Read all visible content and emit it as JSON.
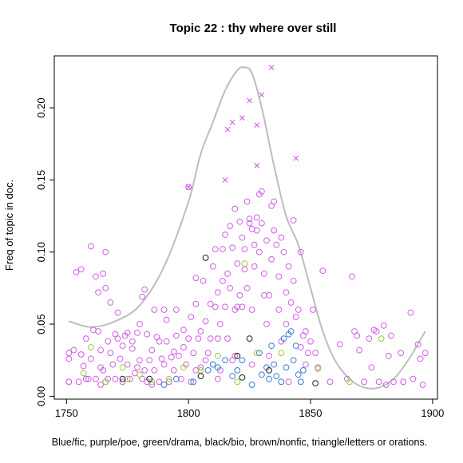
{
  "chart_data": {
    "type": "scatter",
    "title": "Topic 22 : thy where over still",
    "ylabel": "Freq of topic in doc.",
    "caption": "Blue/fic, purple/poe, green/drama, black/bio, brown/nonfic, triangle/letters or orations.",
    "xlim": [
      1745,
      1902
    ],
    "ylim": [
      -0.002,
      0.236
    ],
    "x_ticks": [
      1750,
      1800,
      1850,
      1900
    ],
    "x_tick_labels": [
      "1750",
      "1800",
      "1850",
      "1900"
    ],
    "y_ticks": [
      0.0,
      0.05,
      0.1,
      0.15,
      0.2
    ],
    "y_tick_labels": [
      "0.00",
      "0.05",
      "0.10",
      "0.15",
      "0.20"
    ],
    "grid": false,
    "colors": {
      "fic": "#3a7fd0",
      "poe": "#d15ee6",
      "drama": "#9acd32",
      "bio": "#222222",
      "trend": "#bdbdbd"
    },
    "trend": {
      "x": [
        1751,
        1760,
        1770,
        1780,
        1790,
        1800,
        1805,
        1810,
        1815,
        1820,
        1823,
        1826,
        1830,
        1835,
        1840,
        1845,
        1850,
        1855,
        1860,
        1866,
        1872,
        1878,
        1884,
        1890,
        1897
      ],
      "y": [
        0.052,
        0.048,
        0.052,
        0.063,
        0.09,
        0.135,
        0.168,
        0.19,
        0.212,
        0.226,
        0.228,
        0.224,
        0.2,
        0.16,
        0.125,
        0.105,
        0.075,
        0.045,
        0.025,
        0.012,
        0.006,
        0.006,
        0.012,
        0.025,
        0.045
      ]
    },
    "series": [
      {
        "name": "purple/poe",
        "marker": "circle",
        "color": "#d15ee6",
        "points": [
          [
            1751,
            0.03
          ],
          [
            1751,
            0.026
          ],
          [
            1751,
            0.01
          ],
          [
            1753,
            0.032
          ],
          [
            1754,
            0.086
          ],
          [
            1755,
            0.01
          ],
          [
            1756,
            0.029
          ],
          [
            1756,
            0.088
          ],
          [
            1757,
            0.021
          ],
          [
            1758,
            0.012
          ],
          [
            1759,
            0.012
          ],
          [
            1760,
            0.104
          ],
          [
            1760,
            0.026
          ],
          [
            1761,
            0.046
          ],
          [
            1762,
            0.012
          ],
          [
            1762,
            0.083
          ],
          [
            1763,
            0.072
          ],
          [
            1763,
            0.045
          ],
          [
            1764,
            0.032
          ],
          [
            1764,
            0.02
          ],
          [
            1765,
            0.085
          ],
          [
            1765,
            0.018
          ],
          [
            1766,
            0.01
          ],
          [
            1766,
            0.075
          ],
          [
            1767,
            0.038
          ],
          [
            1767,
            0.012
          ],
          [
            1768,
            0.03
          ],
          [
            1768,
            0.065
          ],
          [
            1769,
            0.022
          ],
          [
            1770,
            0.043
          ],
          [
            1770,
            0.012
          ],
          [
            1771,
            0.058
          ],
          [
            1772,
            0.026
          ],
          [
            1773,
            0.035
          ],
          [
            1773,
            0.01
          ],
          [
            1774,
            0.042
          ],
          [
            1775,
            0.044
          ],
          [
            1775,
            0.022
          ],
          [
            1776,
            0.012
          ],
          [
            1777,
            0.033
          ],
          [
            1777,
            0.038
          ],
          [
            1778,
            0.016
          ],
          [
            1779,
            0.044
          ],
          [
            1780,
            0.05
          ],
          [
            1780,
            0.025
          ],
          [
            1781,
            0.069
          ],
          [
            1781,
            0.012
          ],
          [
            1782,
            0.018
          ],
          [
            1782,
            0.074
          ],
          [
            1783,
            0.01
          ],
          [
            1783,
            0.043
          ],
          [
            1784,
            0.025
          ],
          [
            1785,
            0.032
          ],
          [
            1785,
            0.008
          ],
          [
            1786,
            0.018
          ],
          [
            1787,
            0.041
          ],
          [
            1788,
            0.038
          ],
          [
            1788,
            0.01
          ],
          [
            1789,
            0.026
          ],
          [
            1790,
            0.022
          ],
          [
            1790,
            0.06
          ],
          [
            1791,
            0.053
          ],
          [
            1791,
            0.038
          ],
          [
            1792,
            0.01
          ],
          [
            1793,
            0.027
          ],
          [
            1794,
            0.031
          ],
          [
            1794,
            0.018
          ],
          [
            1795,
            0.042
          ],
          [
            1795,
            0.06
          ],
          [
            1796,
            0.028
          ],
          [
            1797,
            0.012
          ],
          [
            1798,
            0.034
          ],
          [
            1798,
            0.046
          ],
          [
            1799,
            0.022
          ],
          [
            1800,
            0.145
          ],
          [
            1800,
            0.04
          ],
          [
            1801,
            0.055
          ],
          [
            1801,
            0.01
          ],
          [
            1802,
            0.03
          ],
          [
            1803,
            0.064
          ],
          [
            1803,
            0.018
          ],
          [
            1804,
            0.04
          ],
          [
            1805,
            0.045
          ],
          [
            1805,
            0.02
          ],
          [
            1806,
            0.08
          ],
          [
            1807,
            0.052
          ],
          [
            1808,
            0.03
          ],
          [
            1809,
            0.064
          ],
          [
            1809,
            0.04
          ],
          [
            1810,
            0.09
          ],
          [
            1810,
            0.022
          ],
          [
            1811,
            0.062
          ],
          [
            1811,
            0.102
          ],
          [
            1812,
            0.072
          ],
          [
            1812,
            0.04
          ],
          [
            1813,
            0.05
          ],
          [
            1813,
            0.018
          ],
          [
            1814,
            0.08
          ],
          [
            1814,
            0.102
          ],
          [
            1815,
            0.112
          ],
          [
            1815,
            0.062
          ],
          [
            1816,
            0.085
          ],
          [
            1816,
            0.04
          ],
          [
            1817,
            0.075
          ],
          [
            1817,
            0.118
          ],
          [
            1818,
            0.025
          ],
          [
            1818,
            0.103
          ],
          [
            1819,
            0.06
          ],
          [
            1819,
            0.13
          ],
          [
            1820,
            0.092
          ],
          [
            1820,
            0.062
          ],
          [
            1821,
            0.07
          ],
          [
            1821,
            0.121
          ],
          [
            1822,
            0.062
          ],
          [
            1822,
            0.11
          ],
          [
            1823,
            0.102
          ],
          [
            1823,
            0.088
          ],
          [
            1824,
            0.135
          ],
          [
            1824,
            0.075
          ],
          [
            1825,
            0.12
          ],
          [
            1825,
            0.123
          ],
          [
            1826,
            0.116
          ],
          [
            1826,
            0.06
          ],
          [
            1827,
            0.105
          ],
          [
            1827,
            0.09
          ],
          [
            1828,
            0.124
          ],
          [
            1828,
            0.115
          ],
          [
            1829,
            0.14
          ],
          [
            1829,
            0.1
          ],
          [
            1830,
            0.142
          ],
          [
            1830,
            0.12
          ],
          [
            1831,
            0.085
          ],
          [
            1831,
            0.07
          ],
          [
            1832,
            0.108
          ],
          [
            1832,
            0.05
          ],
          [
            1833,
            0.07
          ],
          [
            1834,
            0.095
          ],
          [
            1834,
            0.132
          ],
          [
            1835,
            0.115
          ],
          [
            1835,
            0.135
          ],
          [
            1836,
            0.105
          ],
          [
            1837,
            0.083
          ],
          [
            1837,
            0.06
          ],
          [
            1838,
            0.11
          ],
          [
            1838,
            0.038
          ],
          [
            1839,
            0.1
          ],
          [
            1840,
            0.072
          ],
          [
            1840,
            0.05
          ],
          [
            1841,
            0.09
          ],
          [
            1842,
            0.065
          ],
          [
            1843,
            0.122
          ],
          [
            1843,
            0.08
          ],
          [
            1844,
            0.055
          ],
          [
            1845,
            0.06
          ],
          [
            1846,
            0.1
          ],
          [
            1847,
            0.042
          ],
          [
            1848,
            0.045
          ],
          [
            1849,
            0.03
          ],
          [
            1850,
            0.038
          ],
          [
            1851,
            0.06
          ],
          [
            1852,
            0.03
          ],
          [
            1853,
            0.02
          ],
          [
            1855,
            0.087
          ],
          [
            1858,
            0.01
          ],
          [
            1862,
            0.036
          ],
          [
            1865,
            0.012
          ],
          [
            1867,
            0.083
          ],
          [
            1868,
            0.045
          ],
          [
            1869,
            0.042
          ],
          [
            1870,
            0.032
          ],
          [
            1872,
            0.01
          ],
          [
            1874,
            0.04
          ],
          [
            1875,
            0.02
          ],
          [
            1876,
            0.046
          ],
          [
            1877,
            0.045
          ],
          [
            1878,
            0.01
          ],
          [
            1880,
            0.049
          ],
          [
            1881,
            0.008
          ],
          [
            1882,
            0.028
          ],
          [
            1883,
            0.042
          ],
          [
            1884,
            0.01
          ],
          [
            1887,
            0.03
          ],
          [
            1888,
            0.01
          ],
          [
            1891,
            0.058
          ],
          [
            1892,
            0.012
          ],
          [
            1894,
            0.036
          ],
          [
            1895,
            0.026
          ],
          [
            1897,
            0.03
          ],
          [
            1896,
            0.008
          ],
          [
            1766,
            0.1
          ],
          [
            1758,
            0.04
          ],
          [
            1764,
            0.008
          ],
          [
            1786,
            0.06
          ],
          [
            1803,
            0.082
          ],
          [
            1807,
            0.025
          ],
          [
            1812,
            0.012
          ],
          [
            1819,
            0.028
          ],
          [
            1826,
            0.022
          ],
          [
            1833,
            0.028
          ],
          [
            1841,
            0.01
          ],
          [
            1848,
            0.022
          ],
          [
            1779,
            0.02
          ],
          [
            1771,
            0.04
          ],
          [
            1846,
            0.034
          ]
        ]
      },
      {
        "name": "purple/poe",
        "marker": "x",
        "color": "#d15ee6",
        "points": [
          [
            1800,
            0.145
          ],
          [
            1815,
            0.15
          ],
          [
            1816,
            0.185
          ],
          [
            1818,
            0.19
          ],
          [
            1822,
            0.193
          ],
          [
            1825,
            0.205
          ],
          [
            1828,
            0.16
          ],
          [
            1828,
            0.188
          ],
          [
            1830,
            0.209
          ],
          [
            1834,
            0.228
          ],
          [
            1844,
            0.165
          ]
        ]
      },
      {
        "name": "blue/fic",
        "marker": "circle",
        "color": "#3a7fd0",
        "points": [
          [
            1790,
            0.008
          ],
          [
            1795,
            0.012
          ],
          [
            1802,
            0.01
          ],
          [
            1808,
            0.018
          ],
          [
            1810,
            0.022
          ],
          [
            1812,
            0.02
          ],
          [
            1815,
            0.025
          ],
          [
            1818,
            0.014
          ],
          [
            1820,
            0.018
          ],
          [
            1822,
            0.025
          ],
          [
            1826,
            0.008
          ],
          [
            1830,
            0.015
          ],
          [
            1832,
            0.02
          ],
          [
            1834,
            0.035
          ],
          [
            1835,
            0.022
          ],
          [
            1836,
            0.014
          ],
          [
            1838,
            0.01
          ],
          [
            1839,
            0.04
          ],
          [
            1840,
            0.02
          ],
          [
            1841,
            0.043
          ],
          [
            1842,
            0.045
          ],
          [
            1843,
            0.025
          ],
          [
            1844,
            0.035
          ],
          [
            1845,
            0.015
          ],
          [
            1846,
            0.01
          ],
          [
            1847,
            0.018
          ],
          [
            1833,
            0.012
          ],
          [
            1829,
            0.03
          ]
        ]
      },
      {
        "name": "green/drama",
        "marker": "circle",
        "color": "#9acd32",
        "points": [
          [
            1757,
            0.016
          ],
          [
            1760,
            0.034
          ],
          [
            1766,
            0.01
          ],
          [
            1773,
            0.02
          ],
          [
            1775,
            0.012
          ],
          [
            1780,
            0.015
          ],
          [
            1785,
            0.01
          ],
          [
            1792,
            0.012
          ],
          [
            1798,
            0.02
          ],
          [
            1805,
            0.018
          ],
          [
            1812,
            0.028
          ],
          [
            1820,
            0.01
          ],
          [
            1823,
            0.092
          ],
          [
            1828,
            0.03
          ],
          [
            1838,
            0.03
          ],
          [
            1853,
            0.019
          ],
          [
            1879,
            0.04
          ],
          [
            1866,
            0.01
          ]
        ]
      },
      {
        "name": "black/bio",
        "marker": "circle",
        "color": "#222222",
        "points": [
          [
            1773,
            0.012
          ],
          [
            1805,
            0.014
          ],
          [
            1807,
            0.096
          ],
          [
            1820,
            0.028
          ],
          [
            1822,
            0.013
          ],
          [
            1825,
            0.04
          ],
          [
            1833,
            0.018
          ],
          [
            1852,
            0.009
          ],
          [
            1784,
            0.012
          ]
        ]
      }
    ]
  }
}
